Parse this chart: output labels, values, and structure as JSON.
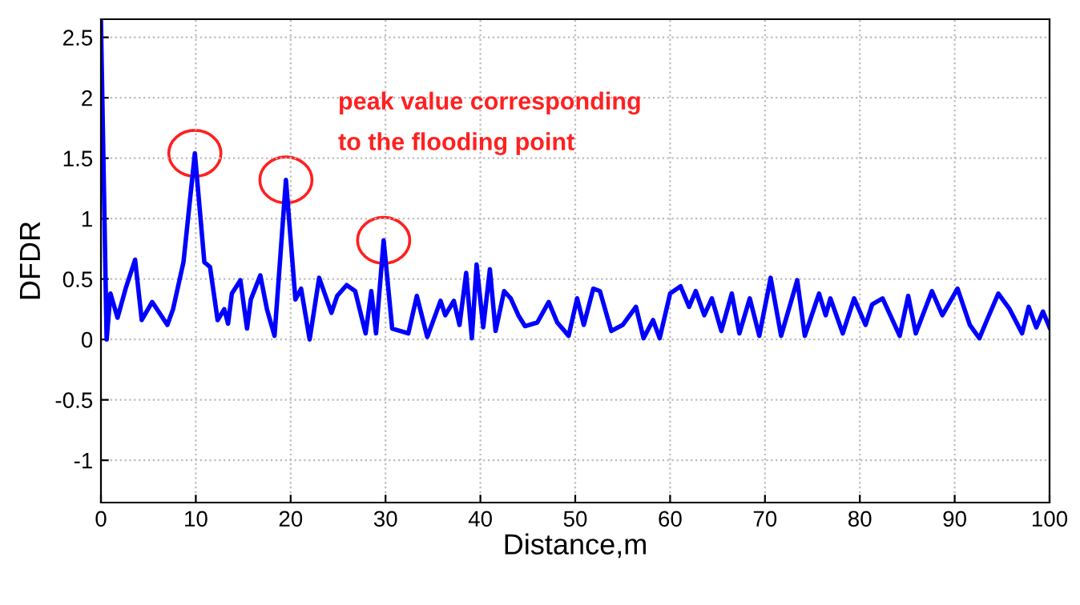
{
  "chart_data": {
    "type": "line",
    "xlabel": "Distance,m",
    "ylabel": "DFDR",
    "annotations": [
      "peak value corresponding\nto the flooding point"
    ],
    "series": [
      {
        "color": "#0000ff",
        "x": [
          0,
          0.6,
          1.0,
          1.75,
          2.6,
          3.6,
          4.3,
          5.4,
          7.0,
          7.6,
          8.7,
          9.9,
          10.9,
          11.5,
          12.3,
          13.0,
          13.4,
          13.8,
          14.7,
          15.4,
          15.8,
          16.8,
          17.5,
          18.3,
          19.5,
          20.5,
          21.1,
          22.0,
          23.0,
          24.3,
          24.9,
          25.9,
          26.8,
          27.9,
          28.5,
          29.0,
          29.8,
          30.7,
          32.4,
          33.3,
          34.4,
          35.8,
          36.3,
          37.2,
          37.8,
          38.5,
          39.1,
          39.6,
          40.3,
          41.0,
          41.6,
          42.5,
          43.2,
          44.0,
          44.7,
          46.0,
          47.2,
          48.1,
          49.3,
          50.2,
          50.9,
          51.9,
          52.6,
          53.8,
          55.0,
          56.4,
          57.2,
          58.2,
          58.9,
          60.0,
          61.1,
          62.0,
          62.7,
          63.6,
          64.4,
          65.4,
          66.5,
          67.3,
          68.4,
          69.4,
          70.6,
          71.7,
          73.4,
          74.2,
          75.7,
          76.4,
          76.9,
          78.2,
          79.4,
          80.6,
          81.3,
          82.4,
          84.2,
          85.1,
          85.9,
          87.6,
          88.7,
          90.3,
          91.6,
          92.6,
          93.4,
          94.6,
          95.8,
          97.1,
          97.8,
          98.6,
          99.3,
          100
        ],
        "values": [
          2.63,
          0.0,
          0.38,
          0.18,
          0.42,
          0.66,
          0.16,
          0.31,
          0.12,
          0.25,
          0.64,
          1.54,
          0.64,
          0.6,
          0.16,
          0.25,
          0.13,
          0.38,
          0.49,
          0.09,
          0.33,
          0.53,
          0.25,
          0.03,
          1.32,
          0.33,
          0.42,
          0.0,
          0.51,
          0.22,
          0.36,
          0.45,
          0.4,
          0.05,
          0.4,
          0.05,
          0.82,
          0.09,
          0.05,
          0.36,
          0.02,
          0.32,
          0.2,
          0.32,
          0.12,
          0.55,
          0.01,
          0.62,
          0.1,
          0.58,
          0.07,
          0.4,
          0.34,
          0.2,
          0.11,
          0.14,
          0.31,
          0.14,
          0.03,
          0.34,
          0.12,
          0.42,
          0.4,
          0.07,
          0.12,
          0.27,
          0.01,
          0.16,
          0.01,
          0.38,
          0.44,
          0.27,
          0.4,
          0.2,
          0.34,
          0.07,
          0.38,
          0.05,
          0.34,
          0.03,
          0.51,
          0.03,
          0.49,
          0.03,
          0.38,
          0.2,
          0.34,
          0.05,
          0.34,
          0.12,
          0.29,
          0.34,
          0.03,
          0.36,
          0.05,
          0.4,
          0.2,
          0.42,
          0.12,
          0.01,
          0.16,
          0.38,
          0.25,
          0.05,
          0.27,
          0.1,
          0.23,
          0.1
        ]
      }
    ],
    "xlim": [
      0,
      100
    ],
    "xticks": [
      0,
      10,
      20,
      30,
      40,
      50,
      60,
      70,
      80,
      90,
      100
    ],
    "ylim": [
      -1.35,
      2.65
    ],
    "yticks": [
      -1,
      -0.5,
      0,
      0.5,
      1,
      1.5,
      2,
      2.5
    ],
    "grid": true,
    "marker": "none",
    "line_style": "solid"
  }
}
